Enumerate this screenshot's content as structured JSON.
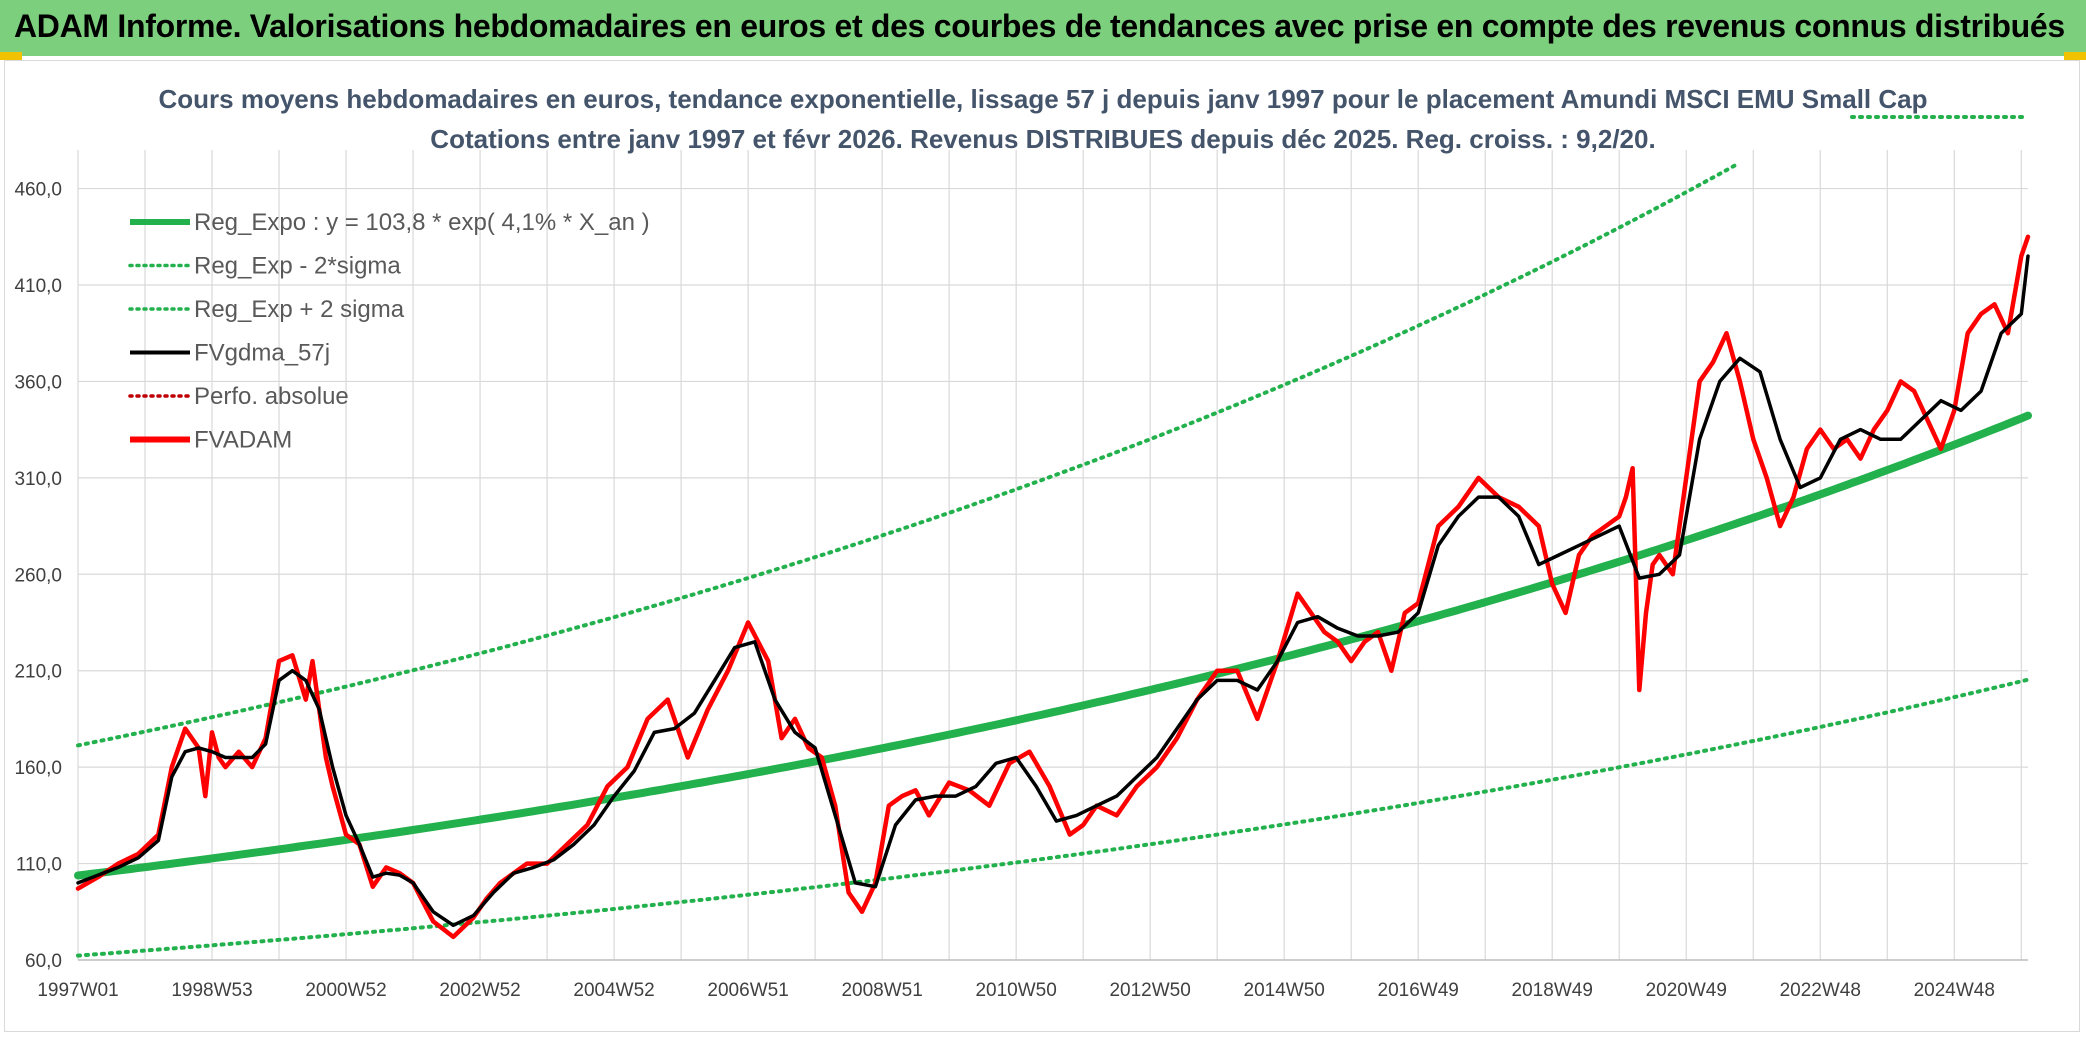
{
  "banner": {
    "title": "ADAM Informe. Valorisations hebdomadaires en euros et des courbes de tendances avec prise en compte des revenus connus distribués"
  },
  "colors": {
    "banner_bg": "#7ccf7c",
    "regression": "#22b14c",
    "fvadam": "#ff0000",
    "fvgdma": "#000000",
    "grid": "#d9d9d9",
    "axis_text": "#404040",
    "title_text": "#44546a"
  },
  "chart_data": {
    "type": "line",
    "title": "Cours moyens hebdomadaires en euros, tendance exponentielle, lissage 57 j depuis janv 1997 pour le placement Amundi MSCI EMU Small Cap",
    "subtitle": "Cotations entre janv 1997 et févr 2026. Revenus DISTRIBUES depuis déc 2025. Reg. croiss. : 9,2/20.",
    "xlabel": "",
    "ylabel": "",
    "ylim": [
      60,
      480
    ],
    "xlim": [
      0,
      29.1
    ],
    "yticks": [
      60,
      110,
      160,
      210,
      260,
      310,
      360,
      410,
      460
    ],
    "ytick_labels": [
      "60,0",
      "110,0",
      "160,0",
      "210,0",
      "260,0",
      "310,0",
      "360,0",
      "410,0",
      "460,0"
    ],
    "xticks": [
      {
        "x": 0,
        "label": "1997W01"
      },
      {
        "x": 2,
        "label": "1998W53"
      },
      {
        "x": 4,
        "label": "2000W52"
      },
      {
        "x": 6,
        "label": "2002W52"
      },
      {
        "x": 8,
        "label": "2004W52"
      },
      {
        "x": 10,
        "label": "2006W51"
      },
      {
        "x": 12,
        "label": "2008W51"
      },
      {
        "x": 14,
        "label": "2010W50"
      },
      {
        "x": 16,
        "label": "2012W50"
      },
      {
        "x": 18,
        "label": "2014W50"
      },
      {
        "x": 20,
        "label": "2016W49"
      },
      {
        "x": 22,
        "label": "2018W49"
      },
      {
        "x": 24,
        "label": "2020W49"
      },
      {
        "x": 26,
        "label": "2022W48"
      },
      {
        "x": 28,
        "label": "2024W48"
      }
    ],
    "grid": true,
    "legend_position": "top-left",
    "legend": [
      {
        "label": "Reg_Expo : y = 103,8 * exp( 4,1% *  X_an )",
        "style": "solid-thick",
        "color": "#22b14c"
      },
      {
        "label": "Reg_Exp - 2*sigma",
        "style": "dotted",
        "color": "#22b14c"
      },
      {
        "label": "Reg_Exp + 2 sigma",
        "style": "dotted",
        "color": "#22b14c"
      },
      {
        "label": "FVgdma_57j",
        "style": "solid",
        "color": "#000000"
      },
      {
        "label": "Perfo. absolue",
        "style": "dotted",
        "color": "#c00000"
      },
      {
        "label": "FVADAM",
        "style": "solid-thick",
        "color": "#ff0000"
      }
    ],
    "regression": {
      "a": 103.8,
      "rate": 0.041,
      "lower_factor": 0.6,
      "upper_factor": 1.65
    },
    "series": [
      {
        "name": "FVADAM",
        "x": [
          0,
          0.3,
          0.6,
          0.9,
          1.2,
          1.4,
          1.6,
          1.8,
          1.9,
          2.0,
          2.1,
          2.2,
          2.4,
          2.6,
          2.8,
          3.0,
          3.2,
          3.4,
          3.5,
          3.6,
          3.7,
          3.8,
          4.0,
          4.2,
          4.4,
          4.6,
          4.8,
          5.0,
          5.3,
          5.6,
          5.9,
          6.1,
          6.3,
          6.5,
          6.7,
          7.0,
          7.3,
          7.6,
          7.9,
          8.2,
          8.5,
          8.8,
          9.1,
          9.4,
          9.7,
          10.0,
          10.3,
          10.5,
          10.7,
          10.9,
          11.1,
          11.3,
          11.5,
          11.7,
          11.9,
          12.1,
          12.3,
          12.5,
          12.7,
          13.0,
          13.3,
          13.6,
          13.9,
          14.2,
          14.5,
          14.8,
          15.0,
          15.2,
          15.5,
          15.8,
          16.1,
          16.4,
          16.7,
          17.0,
          17.3,
          17.6,
          17.9,
          18.2,
          18.4,
          18.6,
          18.8,
          19.0,
          19.2,
          19.4,
          19.6,
          19.8,
          20.0,
          20.3,
          20.6,
          20.9,
          21.2,
          21.5,
          21.8,
          22.0,
          22.2,
          22.4,
          22.6,
          22.8,
          23.0,
          23.1,
          23.2,
          23.3,
          23.4,
          23.5,
          23.6,
          23.8,
          24.0,
          24.2,
          24.4,
          24.6,
          24.8,
          25.0,
          25.2,
          25.4,
          25.6,
          25.8,
          26.0,
          26.2,
          26.4,
          26.6,
          26.8,
          27.0,
          27.2,
          27.4,
          27.6,
          27.8,
          28.0,
          28.2,
          28.4,
          28.6,
          28.8,
          29.0,
          29.1
        ],
        "values": [
          97,
          103,
          110,
          115,
          125,
          160,
          180,
          170,
          145,
          178,
          165,
          160,
          168,
          160,
          175,
          215,
          218,
          195,
          215,
          190,
          165,
          150,
          125,
          120,
          98,
          108,
          105,
          100,
          80,
          72,
          82,
          92,
          100,
          105,
          110,
          110,
          120,
          130,
          150,
          160,
          185,
          195,
          165,
          190,
          210,
          235,
          215,
          175,
          185,
          170,
          165,
          140,
          95,
          85,
          100,
          140,
          145,
          148,
          135,
          152,
          148,
          140,
          162,
          168,
          150,
          125,
          130,
          140,
          135,
          150,
          160,
          175,
          195,
          210,
          210,
          185,
          215,
          250,
          240,
          230,
          225,
          215,
          225,
          230,
          210,
          240,
          245,
          285,
          295,
          310,
          300,
          295,
          285,
          255,
          240,
          270,
          280,
          285,
          290,
          300,
          315,
          200,
          240,
          265,
          270,
          260,
          310,
          360,
          370,
          385,
          360,
          330,
          310,
          285,
          300,
          325,
          335,
          325,
          330,
          320,
          335,
          345,
          360,
          355,
          340,
          325,
          345,
          385,
          395,
          400,
          385,
          425,
          435
        ],
        "color": "#ff0000"
      },
      {
        "name": "FVgdma_57j",
        "x": [
          0,
          0.3,
          0.6,
          0.9,
          1.2,
          1.4,
          1.6,
          1.8,
          2.0,
          2.2,
          2.4,
          2.6,
          2.8,
          3.0,
          3.2,
          3.4,
          3.6,
          3.8,
          4.0,
          4.2,
          4.4,
          4.6,
          4.8,
          5.0,
          5.3,
          5.6,
          5.9,
          6.2,
          6.5,
          6.8,
          7.1,
          7.4,
          7.7,
          8.0,
          8.3,
          8.6,
          8.9,
          9.2,
          9.5,
          9.8,
          10.1,
          10.4,
          10.7,
          11.0,
          11.3,
          11.6,
          11.9,
          12.2,
          12.5,
          12.8,
          13.1,
          13.4,
          13.7,
          14.0,
          14.3,
          14.6,
          14.9,
          15.2,
          15.5,
          15.8,
          16.1,
          16.4,
          16.7,
          17.0,
          17.3,
          17.6,
          17.9,
          18.2,
          18.5,
          18.8,
          19.1,
          19.4,
          19.7,
          20.0,
          20.3,
          20.6,
          20.9,
          21.2,
          21.5,
          21.8,
          22.1,
          22.4,
          22.7,
          23.0,
          23.3,
          23.6,
          23.9,
          24.2,
          24.5,
          24.8,
          25.1,
          25.4,
          25.7,
          26.0,
          26.3,
          26.6,
          26.9,
          27.2,
          27.5,
          27.8,
          28.1,
          28.4,
          28.7,
          29.0,
          29.1
        ],
        "values": [
          100,
          104,
          108,
          113,
          122,
          155,
          168,
          170,
          168,
          165,
          165,
          165,
          172,
          205,
          210,
          205,
          190,
          160,
          135,
          120,
          103,
          105,
          104,
          100,
          85,
          78,
          83,
          95,
          105,
          108,
          112,
          120,
          130,
          145,
          158,
          178,
          180,
          188,
          205,
          222,
          225,
          195,
          178,
          170,
          135,
          100,
          98,
          130,
          143,
          145,
          145,
          150,
          162,
          165,
          150,
          132,
          135,
          140,
          145,
          155,
          165,
          180,
          195,
          205,
          205,
          200,
          215,
          235,
          238,
          232,
          228,
          228,
          230,
          240,
          275,
          290,
          300,
          300,
          290,
          265,
          270,
          275,
          280,
          285,
          258,
          260,
          270,
          330,
          360,
          372,
          365,
          330,
          305,
          310,
          330,
          335,
          330,
          330,
          340,
          350,
          345,
          355,
          385,
          395,
          425
        ],
        "color": "#000000"
      }
    ]
  }
}
